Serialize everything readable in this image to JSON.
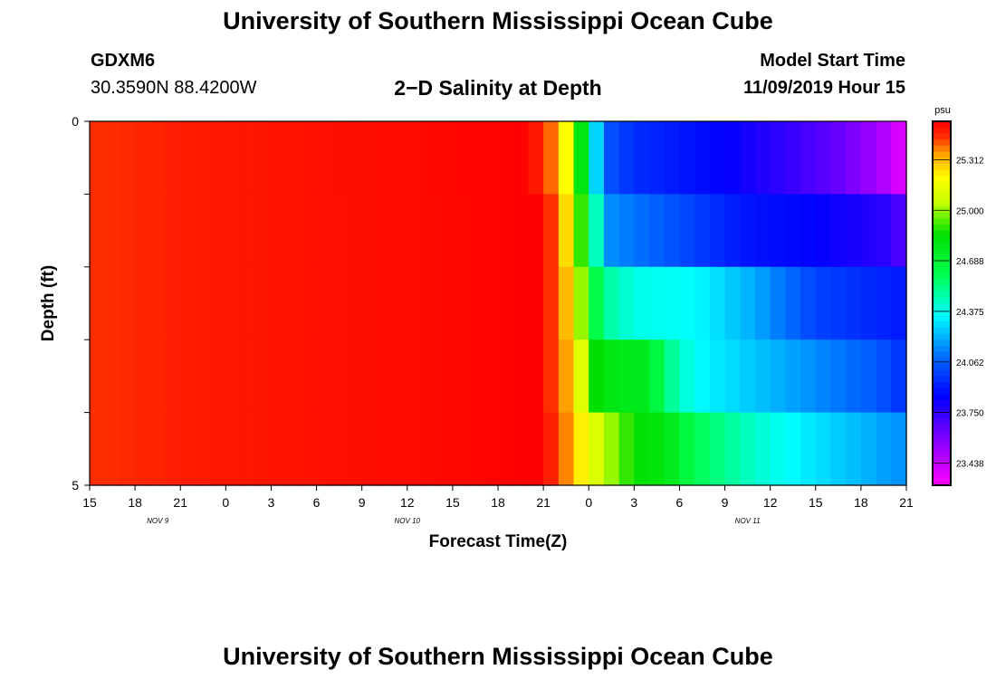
{
  "page_title": "University of Southern Mississippi Ocean Cube",
  "footer_title": "University of Southern Mississippi Ocean Cube",
  "station": {
    "id": "GDXM6",
    "coords": "30.3590N 88.4200W"
  },
  "plot_title": "2−D Salinity at Depth",
  "model_start": {
    "label": "Model Start Time",
    "value": "11/09/2019 Hour 15"
  },
  "chart_data": {
    "type": "heatmap",
    "title": "2−D Salinity at Depth",
    "xlabel": "Forecast Time(Z)",
    "ylabel": "Depth (ft)",
    "units": "psu",
    "x_ticks": [
      "15",
      "18",
      "21",
      "0",
      "3",
      "6",
      "9",
      "12",
      "15",
      "18",
      "21",
      "0",
      "3",
      "6",
      "9",
      "12",
      "15",
      "18",
      "21"
    ],
    "date_labels": [
      {
        "label": "NOV 9",
        "tick_index": 1.5
      },
      {
        "label": "NOV 10",
        "tick_index": 7
      },
      {
        "label": "NOV 11",
        "tick_index": 14.5
      }
    ],
    "y_tick_labels": [
      {
        "label": "0",
        "depth": 0
      },
      {
        "label": "5",
        "depth": 5
      }
    ],
    "ylim": [
      0,
      5
    ],
    "x_range_hours": [
      0,
      54
    ],
    "depth_layers": 5,
    "colorbar": {
      "unit_label": "psu",
      "ticks": [
        "25.312",
        "25.000",
        "24.688",
        "24.375",
        "24.062",
        "23.750",
        "23.438"
      ],
      "tick_values": [
        25.312,
        25.0,
        24.688,
        24.375,
        24.062,
        23.75,
        23.438
      ],
      "range": [
        23.3,
        25.55
      ],
      "colors": [
        {
          "v": 23.3,
          "c": "#ff00ff"
        },
        {
          "v": 23.6,
          "c": "#7a00ff"
        },
        {
          "v": 23.85,
          "c": "#0000ff"
        },
        {
          "v": 24.1,
          "c": "#0070ff"
        },
        {
          "v": 24.35,
          "c": "#00ffff"
        },
        {
          "v": 24.6,
          "c": "#00ff50"
        },
        {
          "v": 24.85,
          "c": "#00e000"
        },
        {
          "v": 25.05,
          "c": "#c8ff00"
        },
        {
          "v": 25.2,
          "c": "#ffff00"
        },
        {
          "v": 25.35,
          "c": "#ffa000"
        },
        {
          "v": 25.45,
          "c": "#ff3000"
        },
        {
          "v": 25.55,
          "c": "#ff0000"
        }
      ]
    },
    "salinity_profiles": [
      {
        "layer": 1,
        "points": [
          [
            0,
            25.45
          ],
          [
            8,
            25.5
          ],
          [
            29,
            25.55
          ],
          [
            30,
            25.45
          ],
          [
            31,
            25.35
          ],
          [
            31.5,
            25.2
          ],
          [
            32,
            25.0
          ],
          [
            32.5,
            24.8
          ],
          [
            33,
            24.5
          ],
          [
            34,
            24.05
          ],
          [
            36,
            23.95
          ],
          [
            42,
            23.85
          ],
          [
            47,
            23.72
          ],
          [
            50,
            23.62
          ],
          [
            53,
            23.45
          ],
          [
            53.8,
            23.35
          ]
        ]
      },
      {
        "layer": 2,
        "points": [
          [
            0,
            25.45
          ],
          [
            8,
            25.5
          ],
          [
            29.5,
            25.55
          ],
          [
            30.5,
            25.45
          ],
          [
            31.3,
            25.3
          ],
          [
            32,
            25.15
          ],
          [
            32.5,
            24.9
          ],
          [
            33.3,
            24.5
          ],
          [
            34.5,
            24.15
          ],
          [
            38,
            24.05
          ],
          [
            43,
            23.9
          ],
          [
            48,
            23.85
          ],
          [
            53,
            23.75
          ],
          [
            54,
            23.65
          ]
        ]
      },
      {
        "layer": 3,
        "points": [
          [
            0,
            25.45
          ],
          [
            8,
            25.5
          ],
          [
            29.5,
            25.55
          ],
          [
            30.5,
            25.45
          ],
          [
            31.3,
            25.35
          ],
          [
            32,
            25.2
          ],
          [
            32.5,
            25.0
          ],
          [
            33,
            24.75
          ],
          [
            34,
            24.5
          ],
          [
            36,
            24.38
          ],
          [
            40,
            24.35
          ],
          [
            44,
            24.2
          ],
          [
            48,
            24.0
          ],
          [
            54,
            23.9
          ]
        ]
      },
      {
        "layer": 4,
        "points": [
          [
            0,
            25.45
          ],
          [
            8,
            25.5
          ],
          [
            29.5,
            25.55
          ],
          [
            30.5,
            25.45
          ],
          [
            31.5,
            25.35
          ],
          [
            32.3,
            25.2
          ],
          [
            33,
            24.9
          ],
          [
            34,
            24.8
          ],
          [
            37,
            24.75
          ],
          [
            38,
            24.55
          ],
          [
            40,
            24.35
          ],
          [
            44,
            24.25
          ],
          [
            48,
            24.15
          ],
          [
            52,
            24.05
          ],
          [
            54,
            23.95
          ]
        ]
      },
      {
        "layer": 5,
        "points": [
          [
            0,
            25.45
          ],
          [
            8,
            25.5
          ],
          [
            29.5,
            25.55
          ],
          [
            31,
            25.45
          ],
          [
            32,
            25.3
          ],
          [
            33,
            25.15
          ],
          [
            34,
            25.05
          ],
          [
            36,
            24.85
          ],
          [
            38,
            24.8
          ],
          [
            40,
            24.6
          ],
          [
            44,
            24.42
          ],
          [
            48,
            24.3
          ],
          [
            52,
            24.2
          ],
          [
            54,
            24.15
          ]
        ]
      }
    ]
  }
}
